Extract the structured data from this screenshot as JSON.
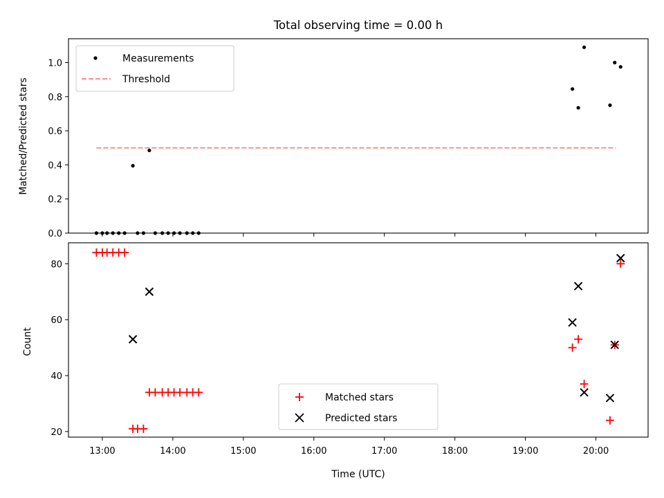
{
  "chart_data": [
    {
      "type": "scatter",
      "title": "Total observing time = 0.00 h",
      "ylabel": "Matched/Predicted stars",
      "xlabel": "",
      "ylim": [
        0.0,
        1.14
      ],
      "xlim_hours": [
        12.52,
        20.74
      ],
      "yticks": [
        "0.0",
        "0.2",
        "0.4",
        "0.6",
        "0.8",
        "1.0"
      ],
      "legend_position": "upper-left",
      "series": [
        {
          "name": "Measurements",
          "marker": "dot",
          "color": "#000000",
          "points": [
            [
              "12:55",
              0.0
            ],
            [
              "13:00",
              0.0
            ],
            [
              "13:04",
              0.0
            ],
            [
              "13:09",
              0.0
            ],
            [
              "13:14",
              0.0
            ],
            [
              "13:19",
              0.0
            ],
            [
              "13:26",
              0.395
            ],
            [
              "13:30",
              0.0
            ],
            [
              "13:35",
              0.0
            ],
            [
              "13:40",
              0.485
            ],
            [
              "13:45",
              0.0
            ],
            [
              "13:51",
              0.0
            ],
            [
              "13:56",
              0.0
            ],
            [
              "14:01",
              0.0
            ],
            [
              "14:06",
              0.0
            ],
            [
              "14:12",
              0.0
            ],
            [
              "14:17",
              0.0
            ],
            [
              "14:22",
              0.0
            ],
            [
              "19:40",
              0.845
            ],
            [
              "19:45",
              0.735
            ],
            [
              "19:50",
              1.09
            ],
            [
              "20:12",
              0.75
            ],
            [
              "20:16",
              1.0
            ],
            [
              "20:21",
              0.975
            ]
          ]
        },
        {
          "name": "Threshold",
          "marker": "dashed-line",
          "color": "#ff7f7f",
          "points": [
            [
              "12:55",
              0.5
            ],
            [
              "20:17",
              0.5
            ]
          ]
        }
      ]
    },
    {
      "type": "scatter",
      "title": "",
      "ylabel": "Count",
      "xlabel": "Time (UTC)",
      "ylim": [
        18,
        87.5
      ],
      "xlim_hours": [
        12.52,
        20.74
      ],
      "yticks": [
        "20",
        "40",
        "60",
        "80"
      ],
      "xticks": [
        "13:00",
        "14:00",
        "15:00",
        "16:00",
        "17:00",
        "18:00",
        "19:00",
        "20:00"
      ],
      "legend_position": "lower-center",
      "series": [
        {
          "name": "Matched stars",
          "marker": "plus",
          "color": "#ff0000",
          "points": [
            [
              "12:55",
              84
            ],
            [
              "13:00",
              84
            ],
            [
              "13:04",
              84
            ],
            [
              "13:09",
              84
            ],
            [
              "13:14",
              84
            ],
            [
              "13:19",
              84
            ],
            [
              "13:26",
              21
            ],
            [
              "13:30",
              21
            ],
            [
              "13:35",
              21
            ],
            [
              "13:40",
              34
            ],
            [
              "13:45",
              34
            ],
            [
              "13:51",
              34
            ],
            [
              "13:56",
              34
            ],
            [
              "14:01",
              34
            ],
            [
              "14:06",
              34
            ],
            [
              "14:12",
              34
            ],
            [
              "14:17",
              34
            ],
            [
              "14:22",
              34
            ],
            [
              "19:40",
              50
            ],
            [
              "19:45",
              53
            ],
            [
              "19:50",
              37
            ],
            [
              "20:12",
              24
            ],
            [
              "20:16",
              51
            ],
            [
              "20:21",
              80
            ]
          ]
        },
        {
          "name": "Predicted stars",
          "marker": "x",
          "color": "#000000",
          "points": [
            [
              "13:26",
              53
            ],
            [
              "13:40",
              70
            ],
            [
              "19:40",
              59
            ],
            [
              "19:45",
              72
            ],
            [
              "19:50",
              34
            ],
            [
              "20:12",
              32
            ],
            [
              "20:16",
              51
            ],
            [
              "20:21",
              82
            ]
          ]
        }
      ]
    }
  ]
}
